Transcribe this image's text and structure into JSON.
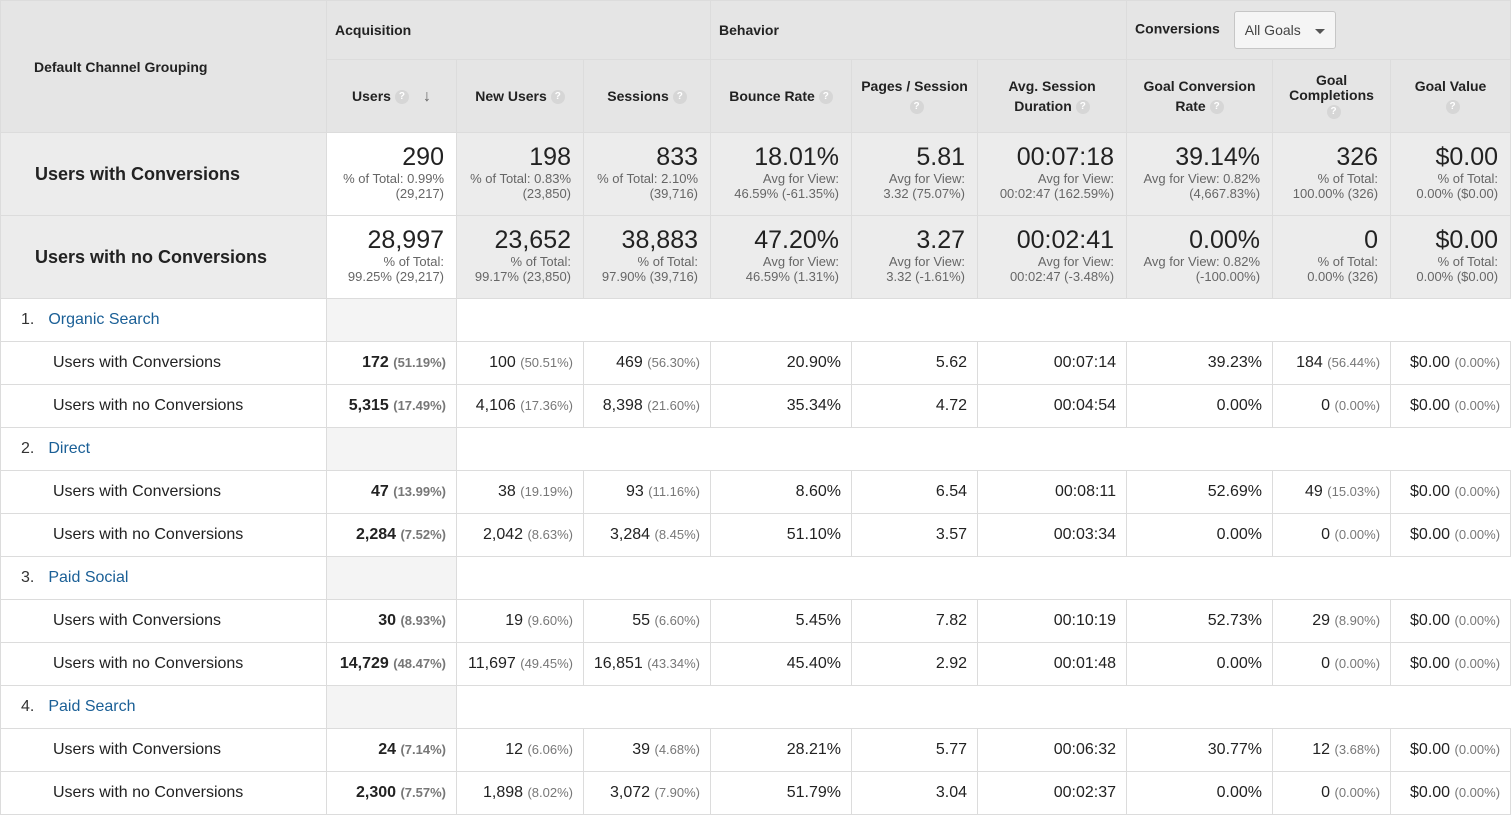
{
  "header": {
    "dimension_label": "Default Channel Grouping",
    "groups": {
      "acquisition": "Acquisition",
      "behavior": "Behavior",
      "conversions": "Conversions"
    },
    "goals_select": "All Goals",
    "columns": {
      "users": "Users",
      "new_users": "New Users",
      "sessions": "Sessions",
      "bounce_rate": "Bounce Rate",
      "pages_session": "Pages / Session",
      "avg_session_1": "Avg. Session",
      "avg_session_2": "Duration",
      "goal_conv_1": "Goal Conversion",
      "goal_conv_2": "Rate",
      "goal_comp_1": "Goal",
      "goal_comp_2": "Completions",
      "goal_value": "Goal Value"
    },
    "help_glyph": "?",
    "sort_glyph": "↓"
  },
  "summaries": [
    {
      "label": "Users with Conversions",
      "cells": [
        {
          "big": "290",
          "sub1": "% of Total: 0.99%",
          "sub2": "(29,217)"
        },
        {
          "big": "198",
          "sub1": "% of Total: 0.83%",
          "sub2": "(23,850)"
        },
        {
          "big": "833",
          "sub1": "% of Total: 2.10%",
          "sub2": "(39,716)"
        },
        {
          "big": "18.01%",
          "sub1": "Avg for View:",
          "sub2": "46.59% (-61.35%)"
        },
        {
          "big": "5.81",
          "sub1": "Avg for View:",
          "sub2": "3.32 (75.07%)"
        },
        {
          "big": "00:07:18",
          "sub1": "Avg for View:",
          "sub2": "00:02:47 (162.59%)"
        },
        {
          "big": "39.14%",
          "sub1": "Avg for View: 0.82%",
          "sub2": "(4,667.83%)"
        },
        {
          "big": "326",
          "sub1": "% of Total:",
          "sub2": "100.00% (326)"
        },
        {
          "big": "$0.00",
          "sub1": "% of Total:",
          "sub2": "0.00% ($0.00)"
        }
      ]
    },
    {
      "label": "Users with no Conversions",
      "cells": [
        {
          "big": "28,997",
          "sub1": "% of Total:",
          "sub2": "99.25% (29,217)"
        },
        {
          "big": "23,652",
          "sub1": "% of Total:",
          "sub2": "99.17% (23,850)"
        },
        {
          "big": "38,883",
          "sub1": "% of Total:",
          "sub2": "97.90% (39,716)"
        },
        {
          "big": "47.20%",
          "sub1": "Avg for View:",
          "sub2": "46.59% (1.31%)"
        },
        {
          "big": "3.27",
          "sub1": "Avg for View:",
          "sub2": "3.32 (-1.61%)"
        },
        {
          "big": "00:02:41",
          "sub1": "Avg for View:",
          "sub2": "00:02:47 (-3.48%)"
        },
        {
          "big": "0.00%",
          "sub1": "Avg for View: 0.82%",
          "sub2": "(-100.00%)"
        },
        {
          "big": "0",
          "sub1": "% of Total:",
          "sub2": "0.00% (326)"
        },
        {
          "big": "$0.00",
          "sub1": "% of Total:",
          "sub2": "0.00% ($0.00)"
        }
      ]
    }
  ],
  "groups": [
    {
      "num": "1.",
      "name": "Organic Search",
      "rows": [
        {
          "label": "Users with Conversions",
          "users": "172",
          "users_pct": "(51.19%)",
          "new_users": "100",
          "new_users_pct": "(50.51%)",
          "sessions": "469",
          "sessions_pct": "(56.30%)",
          "bounce": "20.90%",
          "pages": "5.62",
          "duration": "00:07:14",
          "conv_rate": "39.23%",
          "completions": "184",
          "completions_pct": "(56.44%)",
          "value": "$0.00",
          "value_pct": "(0.00%)"
        },
        {
          "label": "Users with no Conversions",
          "users": "5,315",
          "users_pct": "(17.49%)",
          "new_users": "4,106",
          "new_users_pct": "(17.36%)",
          "sessions": "8,398",
          "sessions_pct": "(21.60%)",
          "bounce": "35.34%",
          "pages": "4.72",
          "duration": "00:04:54",
          "conv_rate": "0.00%",
          "completions": "0",
          "completions_pct": "(0.00%)",
          "value": "$0.00",
          "value_pct": "(0.00%)"
        }
      ]
    },
    {
      "num": "2.",
      "name": "Direct",
      "rows": [
        {
          "label": "Users with Conversions",
          "users": "47",
          "users_pct": "(13.99%)",
          "new_users": "38",
          "new_users_pct": "(19.19%)",
          "sessions": "93",
          "sessions_pct": "(11.16%)",
          "bounce": "8.60%",
          "pages": "6.54",
          "duration": "00:08:11",
          "conv_rate": "52.69%",
          "completions": "49",
          "completions_pct": "(15.03%)",
          "value": "$0.00",
          "value_pct": "(0.00%)"
        },
        {
          "label": "Users with no Conversions",
          "users": "2,284",
          "users_pct": "(7.52%)",
          "new_users": "2,042",
          "new_users_pct": "(8.63%)",
          "sessions": "3,284",
          "sessions_pct": "(8.45%)",
          "bounce": "51.10%",
          "pages": "3.57",
          "duration": "00:03:34",
          "conv_rate": "0.00%",
          "completions": "0",
          "completions_pct": "(0.00%)",
          "value": "$0.00",
          "value_pct": "(0.00%)"
        }
      ]
    },
    {
      "num": "3.",
      "name": "Paid Social",
      "rows": [
        {
          "label": "Users with Conversions",
          "users": "30",
          "users_pct": "(8.93%)",
          "new_users": "19",
          "new_users_pct": "(9.60%)",
          "sessions": "55",
          "sessions_pct": "(6.60%)",
          "bounce": "5.45%",
          "pages": "7.82",
          "duration": "00:10:19",
          "conv_rate": "52.73%",
          "completions": "29",
          "completions_pct": "(8.90%)",
          "value": "$0.00",
          "value_pct": "(0.00%)"
        },
        {
          "label": "Users with no Conversions",
          "users": "14,729",
          "users_pct": "(48.47%)",
          "new_users": "11,697",
          "new_users_pct": "(49.45%)",
          "sessions": "16,851",
          "sessions_pct": "(43.34%)",
          "bounce": "45.40%",
          "pages": "2.92",
          "duration": "00:01:48",
          "conv_rate": "0.00%",
          "completions": "0",
          "completions_pct": "(0.00%)",
          "value": "$0.00",
          "value_pct": "(0.00%)"
        }
      ]
    },
    {
      "num": "4.",
      "name": "Paid Search",
      "rows": [
        {
          "label": "Users with Conversions",
          "users": "24",
          "users_pct": "(7.14%)",
          "new_users": "12",
          "new_users_pct": "(6.06%)",
          "sessions": "39",
          "sessions_pct": "(4.68%)",
          "bounce": "28.21%",
          "pages": "5.77",
          "duration": "00:06:32",
          "conv_rate": "30.77%",
          "completions": "12",
          "completions_pct": "(3.68%)",
          "value": "$0.00",
          "value_pct": "(0.00%)"
        },
        {
          "label": "Users with no Conversions",
          "users": "2,300",
          "users_pct": "(7.57%)",
          "new_users": "1,898",
          "new_users_pct": "(8.02%)",
          "sessions": "3,072",
          "sessions_pct": "(7.90%)",
          "bounce": "51.79%",
          "pages": "3.04",
          "duration": "00:02:37",
          "conv_rate": "0.00%",
          "completions": "0",
          "completions_pct": "(0.00%)",
          "value": "$0.00",
          "value_pct": "(0.00%)"
        }
      ]
    }
  ]
}
